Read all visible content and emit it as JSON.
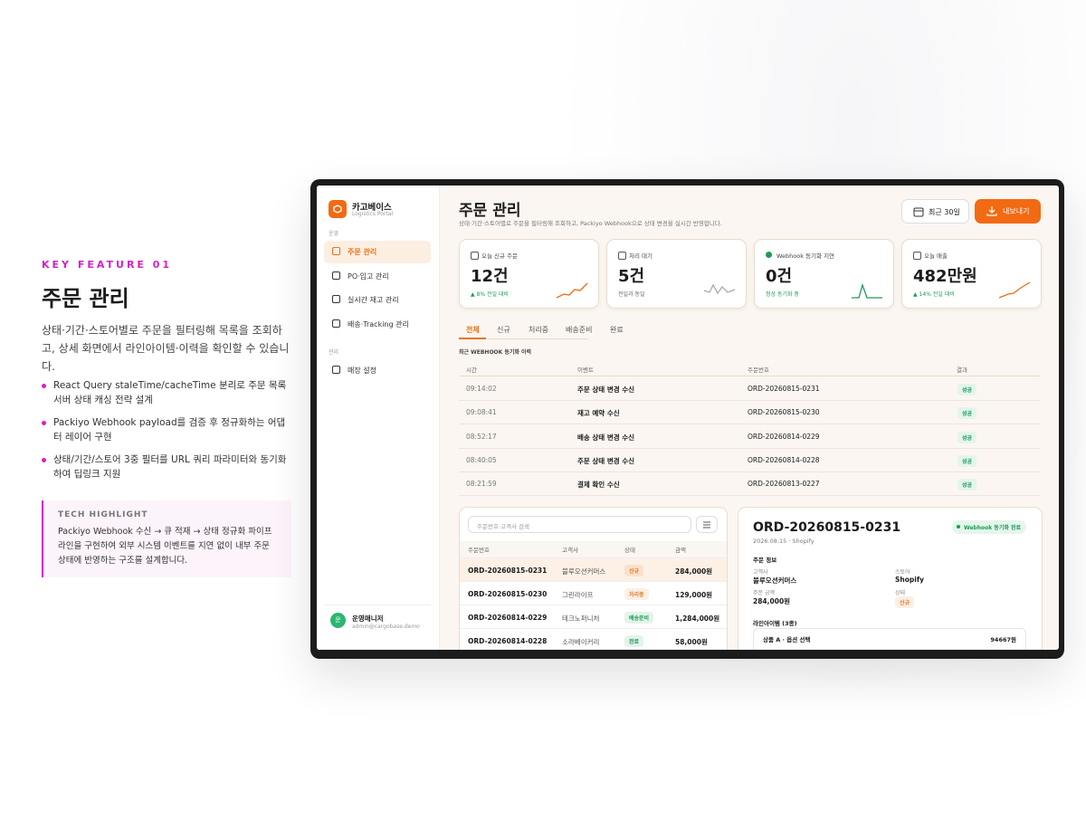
{
  "feature": {
    "eyebrow": "KEY FEATURE 01",
    "title": "주문 관리",
    "description": "상태·기간·스토어별로 주문을 필터링해 목록을 조회하고, 상세 화면에서 라인아이템·이력을 확인할 수 있습니다.",
    "bullets": [
      "React Query staleTime/cacheTime 분리로 주문 목록 서버 상태 캐싱 전략 설계",
      "Packiyo Webhook payload를 검증 후 정규화하는 어댑터 레이어 구현",
      "상태/기간/스토어 3중 필터를 URL 쿼리 파라미터와 동기화하여 딥링크 지원"
    ],
    "highlight": {
      "label": "TECH HIGHLIGHT",
      "text": "Packiyo Webhook 수신 → 큐 적재 → 상태 정규화 파이프라인을 구현하여 외부 시스템 이벤트를 지연 없이 내부 주문 상태에 반영하는 구조를 설계합니다."
    }
  },
  "app": {
    "brand": {
      "name": "카고베이스",
      "sub": "Logistics Portal"
    },
    "nav": [
      {
        "label": "운영",
        "items": [
          "주문 관리",
          "PO·입고 관리",
          "실시간 재고 관리",
          "배송·Tracking 관리"
        ]
      },
      {
        "label": "관리",
        "items": [
          "매장 설정"
        ]
      }
    ],
    "user": {
      "avatar": "운",
      "name": "운영매니저",
      "email": "admin@cargobase.demo"
    },
    "header": {
      "title": "주문 관리",
      "subtitle": "상태·기간·스토어별로 주문을 필터링해 조회하고, Packiyo Webhook으로 상태 변경을 실시간 반영합니다.",
      "range_button": "최근 30일",
      "export_button": "내보내기"
    },
    "kpis": [
      {
        "label": "오늘 신규 주문",
        "value": "12건",
        "note": "▲ 8% 전일 대비",
        "note_color": "#1e9b57"
      },
      {
        "label": "처리 대기",
        "value": "5건",
        "note": "전일과 동일",
        "note_color": "#666666"
      },
      {
        "label": "Webhook 동기화 지연",
        "value": "0건",
        "note": "정상 동기화 중",
        "note_color": "#1e9b57"
      },
      {
        "label": "오늘 매출",
        "value": "482만원",
        "note": "▲ 14% 전일 대비",
        "note_color": "#1e9b57"
      }
    ],
    "tabs": [
      "전체",
      "신규",
      "처리중",
      "배송준비",
      "완료"
    ],
    "webhook": {
      "title": "최근 WEBHOOK 동기화 이력",
      "columns": [
        "시간",
        "이벤트",
        "주문번호",
        "결과"
      ],
      "rows": [
        [
          "09:14:02",
          "주문 상태 변경 수신",
          "ORD-20260815-0231",
          "성공"
        ],
        [
          "09:08:41",
          "재고 예약 수신",
          "ORD-20260815-0230",
          "성공"
        ],
        [
          "08:52:17",
          "배송 상태 변경 수신",
          "ORD-20260814-0229",
          "성공"
        ],
        [
          "08:40:05",
          "주문 상태 변경 수신",
          "ORD-20260814-0228",
          "성공"
        ],
        [
          "08:21:59",
          "결제 확인 수신",
          "ORD-20260813-0227",
          "성공"
        ]
      ]
    },
    "orders": {
      "search_placeholder": "주문번호·고객사 검색",
      "columns": [
        "주문번호",
        "고객사",
        "상태",
        "금액"
      ],
      "rows": [
        {
          "id": "ORD-20260815-0231",
          "customer": "블루오션커머스",
          "status": "신규",
          "amount": "284,000원",
          "color": "#e8731a"
        },
        {
          "id": "ORD-20260815-0230",
          "customer": "그린라이프",
          "status": "처리중",
          "amount": "129,000원",
          "color": "#d9822b"
        },
        {
          "id": "ORD-20260814-0229",
          "customer": "테크노퍼니처",
          "status": "배송준비",
          "amount": "1,284,000원",
          "color": "#1e9b57"
        },
        {
          "id": "ORD-20260814-0228",
          "customer": "소라베이커리",
          "status": "완료",
          "amount": "58,000원",
          "color": "#1e9b57"
        }
      ]
    },
    "detail": {
      "order_id": "ORD-20260815-0231",
      "meta": "2026.08.15 · Shopify",
      "badge": "Webhook 동기화 완료",
      "section": "주문 정보",
      "fields": [
        {
          "label": "고객사",
          "value": "블루오션커머스"
        },
        {
          "label": "스토어",
          "value": "Shopify"
        },
        {
          "label": "주문 금액",
          "value": "284,000원"
        },
        {
          "label": "상태",
          "value": "신규"
        }
      ],
      "status_color": "#e8731a",
      "lines_title": "라인아이템 (3종)",
      "line": {
        "name": "상품 A · 옵션 선택",
        "price": "94667원"
      }
    }
  }
}
